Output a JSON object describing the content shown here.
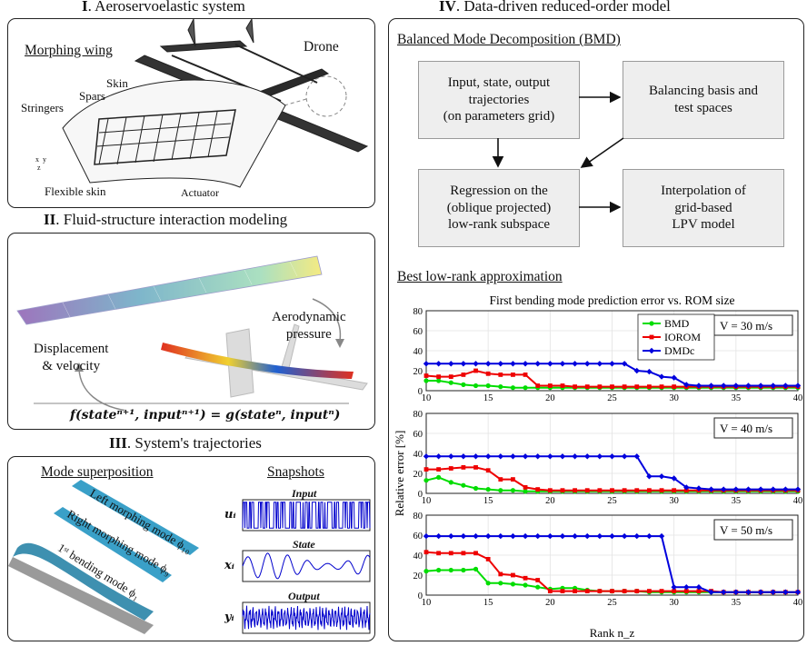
{
  "panels": {
    "p1": {
      "roman": "I",
      "title": ". Aeroservoelastic system",
      "morphing_wing": "Morphing wing",
      "drone": "Drone",
      "skin": "Skin",
      "spars": "Spars",
      "stringers": "Stringers",
      "flexible_skin": "Flexible skin",
      "actuator": "Actuator",
      "axes": "x  y\n z"
    },
    "p2": {
      "roman": "II",
      "title": ". Fluid-structure interaction modeling",
      "aero_pressure": "Aerodynamic\npressure",
      "displacement": "Displacement\n& velocity",
      "equation": "f(stateⁿ⁺¹, inputⁿ⁺¹) = g(stateⁿ, inputⁿ)"
    },
    "p3": {
      "roman": "III",
      "title": ". System's trajectories",
      "mode_superposition": "Mode superposition",
      "snapshots": "Snapshots",
      "left_mode": "Left morphing mode ϕ₁₀",
      "right_mode": "Right morphing mode ϕ₉",
      "bending_mode": "1ˢᵗ bending mode ϕ₁",
      "input_label": "Input",
      "state_label": "State",
      "output_label": "Output",
      "u": "uᵢ",
      "x": "xᵢ",
      "y": "yᵢ"
    },
    "p4": {
      "roman": "IV",
      "title": ". Data-driven reduced-order model",
      "bmd_heading": "Balanced Mode Decomposition (BMD)",
      "box1": "Input, state, output\ntrajectories\n(on parameters grid)",
      "box2": "Balancing basis and\ntest spaces",
      "box3": "Regression on the\n(oblique projected)\nlow-rank subspace",
      "box4": "Interpolation of\ngrid-based\nLPV model",
      "lowrank_heading": "Best low-rank approximation"
    }
  },
  "colors": {
    "bmd": "#00dd00",
    "iorom": "#ee0000",
    "dmdc": "#0000dd",
    "signal": "#0000cc",
    "box_fill": "#eeeeee"
  },
  "chart_data": {
    "type": "line",
    "title": "First bending mode prediction error vs. ROM size",
    "xlabel": "Rank n_z",
    "ylabel": "Relative error [%]",
    "xlim": [
      10,
      40
    ],
    "ylim": [
      0,
      80
    ],
    "x_ticks": [
      10,
      15,
      20,
      25,
      30,
      35,
      40
    ],
    "y_ticks": [
      0,
      20,
      40,
      60,
      80
    ],
    "x": [
      10,
      11,
      12,
      13,
      14,
      15,
      16,
      17,
      18,
      19,
      20,
      21,
      22,
      23,
      24,
      25,
      26,
      27,
      28,
      29,
      30,
      31,
      32,
      33,
      34,
      35,
      36,
      37,
      38,
      39,
      40
    ],
    "legend": [
      "BMD",
      "IOROM",
      "DMDc"
    ],
    "subplots": [
      {
        "annotation": "V = 30 m/s",
        "series": [
          {
            "name": "BMD",
            "values": [
              10,
              10,
              8,
              6,
              5,
              5,
              4,
              3,
              3,
              3,
              3,
              3,
              3,
              3,
              3,
              3,
              3,
              3,
              3,
              3,
              3,
              3,
              3,
              3,
              3,
              3,
              3,
              3,
              3,
              3,
              3
            ]
          },
          {
            "name": "IOROM",
            "values": [
              15,
              14,
              14,
              16,
              20,
              17,
              16,
              16,
              16,
              5,
              5,
              5,
              4,
              4,
              4,
              4,
              4,
              4,
              4,
              4,
              4,
              4,
              4,
              4,
              4,
              4,
              4,
              4,
              4,
              4,
              4
            ]
          },
          {
            "name": "DMDc",
            "values": [
              27,
              27,
              27,
              27,
              27,
              27,
              27,
              27,
              27,
              27,
              27,
              27,
              27,
              27,
              27,
              27,
              27,
              20,
              19,
              14,
              13,
              6,
              5,
              5,
              5,
              5,
              5,
              5,
              5,
              5,
              5
            ]
          }
        ]
      },
      {
        "annotation": "V = 40 m/s",
        "series": [
          {
            "name": "BMD",
            "values": [
              13,
              16,
              11,
              8,
              5,
              4,
              3,
              3,
              2,
              2,
              2,
              2,
              2,
              2,
              2,
              2,
              2,
              2,
              2,
              2,
              2,
              2,
              2,
              2,
              2,
              2,
              2,
              2,
              2,
              2,
              2
            ]
          },
          {
            "name": "IOROM",
            "values": [
              24,
              24,
              25,
              26,
              26,
              23,
              14,
              14,
              6,
              4,
              3,
              3,
              3,
              3,
              3,
              3,
              3,
              3,
              3,
              3,
              3,
              3,
              3,
              3,
              3,
              3,
              3,
              3,
              3,
              3,
              3
            ]
          },
          {
            "name": "DMDc",
            "values": [
              37,
              37,
              37,
              37,
              37,
              37,
              37,
              37,
              37,
              37,
              37,
              37,
              37,
              37,
              37,
              37,
              37,
              37,
              17,
              17,
              15,
              6,
              5,
              4,
              4,
              4,
              4,
              4,
              4,
              4,
              4
            ]
          }
        ]
      },
      {
        "annotation": "V = 50 m/s",
        "series": [
          {
            "name": "BMD",
            "values": [
              24,
              25,
              25,
              25,
              26,
              12,
              12,
              11,
              10,
              8,
              6,
              7,
              7,
              5,
              4,
              4,
              4,
              4,
              3,
              3,
              3,
              3,
              3,
              3,
              3,
              3,
              3,
              3,
              3,
              3,
              3
            ]
          },
          {
            "name": "IOROM",
            "values": [
              43,
              42,
              42,
              42,
              42,
              36,
              21,
              20,
              17,
              15,
              4,
              4,
              4,
              4,
              4,
              4,
              4,
              4,
              4,
              4,
              4,
              4,
              4,
              4,
              3,
              3,
              3,
              3,
              3,
              3,
              3
            ]
          },
          {
            "name": "DMDc",
            "values": [
              59,
              59,
              59,
              59,
              59,
              59,
              59,
              59,
              59,
              59,
              59,
              59,
              59,
              59,
              59,
              59,
              59,
              59,
              59,
              59,
              8,
              8,
              8,
              3,
              3,
              3,
              3,
              3,
              3,
              3,
              3
            ]
          }
        ]
      }
    ]
  }
}
